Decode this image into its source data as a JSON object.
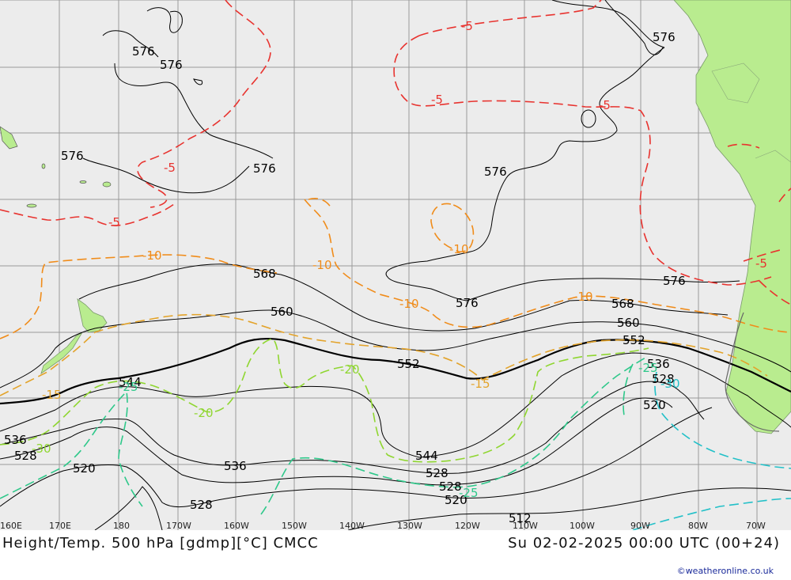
{
  "title": {
    "left": "Height/Temp. 500 hPa [gdmp][°C] CMCC",
    "right": "Su 02-02-2025 00:00 UTC (00+24)"
  },
  "credit": "©weatheronline.co.uk",
  "longitude_labels": [
    "160E",
    "170E",
    "180",
    "170W",
    "160W",
    "150W",
    "140W",
    "130W",
    "120W",
    "110W",
    "100W",
    "90W",
    "80W",
    "70W"
  ],
  "height_labels": [
    "576",
    "576",
    "576",
    "576",
    "576",
    "576",
    "576",
    "568",
    "568",
    "560",
    "560",
    "552",
    "552",
    "544",
    "544",
    "536",
    "536",
    "536",
    "528",
    "528",
    "528",
    "528",
    "520",
    "520",
    "520",
    "512"
  ],
  "temp_labels": [
    "-5",
    "-5",
    "-5",
    "-5",
    "-5",
    "-5",
    "-10",
    "-10",
    "-10",
    "-10",
    "-10",
    "-15",
    "-15",
    "-20",
    "-20",
    "-25",
    "-25",
    "-25",
    "-30",
    "-30"
  ],
  "colors": {
    "ocean": "#ececec",
    "land": "#b9ec8f",
    "height_contour": "#000000",
    "temp_minus5": "#e8332f",
    "temp_minus10": "#f08c1a",
    "temp_minus15": "#e3a32a",
    "temp_minus20": "#8fd630",
    "temp_minus25": "#2ec88a",
    "temp_minus30": "#22c0c8",
    "grid": "#9a9a9a",
    "credit": "#1a2a9a"
  }
}
